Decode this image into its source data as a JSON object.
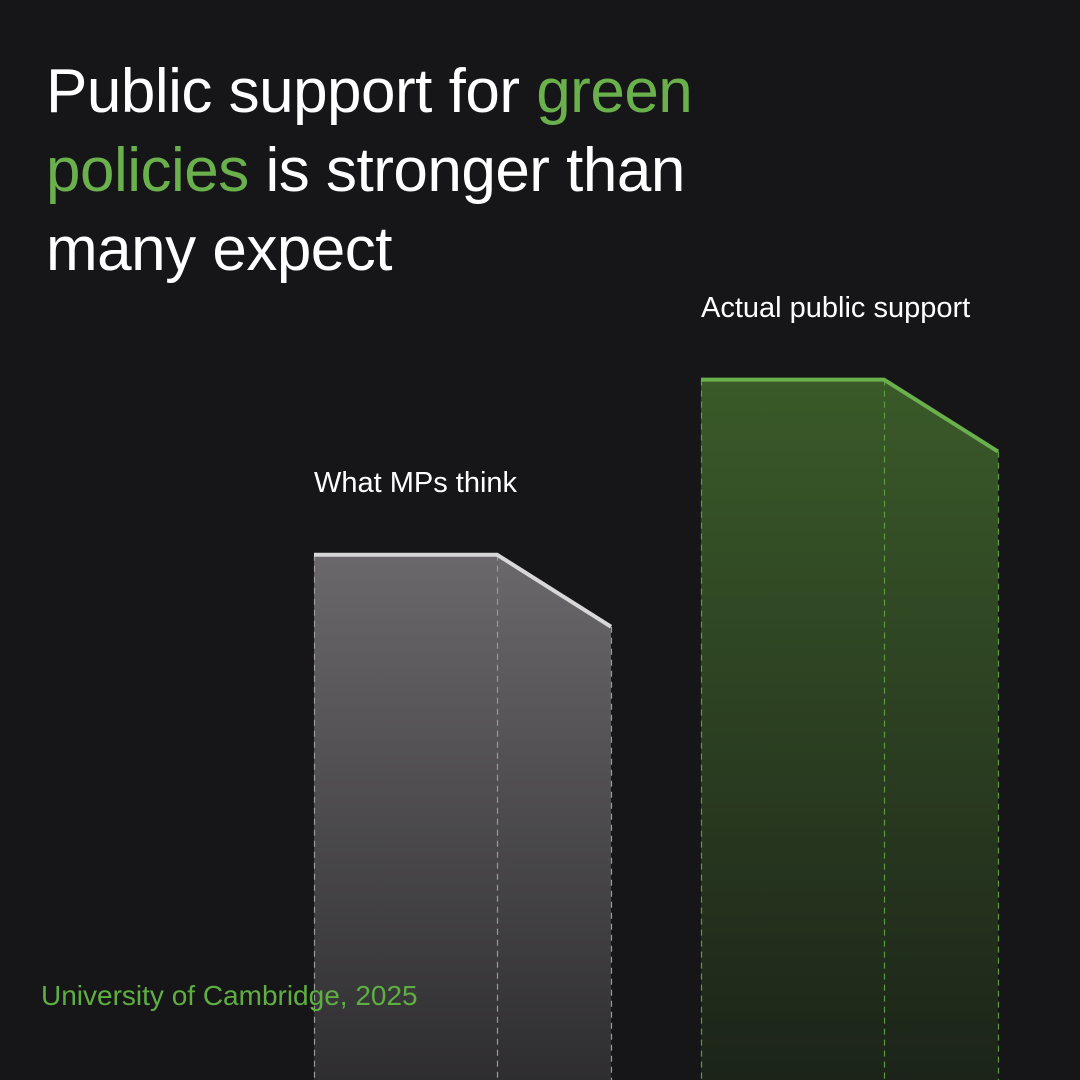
{
  "title": {
    "part1": "Public support for ",
    "highlight": "green policies",
    "part2": " is stronger than many expect"
  },
  "source": "University of Cambridge, 2025",
  "colors": {
    "background": "#161517",
    "accent": "#6ab04c",
    "mps_bar": "#636164",
    "mps_line": "#d8d8d8",
    "public_bar": "#3a5a2a",
    "public_line": "#6ab04c"
  },
  "chart_data": {
    "type": "bar",
    "categories": [
      "What MPs think",
      "Actual public support"
    ],
    "values": [
      51,
      68
    ],
    "ylim": [
      0,
      80
    ],
    "grid": false,
    "legend": "none"
  }
}
